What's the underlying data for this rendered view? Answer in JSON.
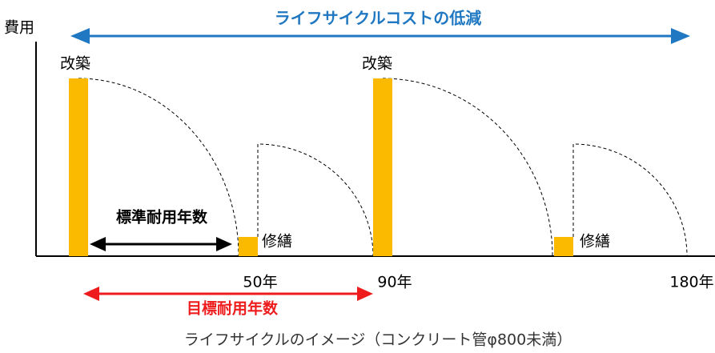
{
  "header": {
    "title": "ライフサイクルコストの低減",
    "y_axis": "費用"
  },
  "events": [
    {
      "label": "改築"
    },
    {
      "label": "修繕"
    },
    {
      "label": "改築"
    },
    {
      "label": "修繕"
    }
  ],
  "axis_labels": [
    "50年",
    "90年",
    "180年"
  ],
  "spans": {
    "standard": "標準耐用年数",
    "target": "目標耐用年数"
  },
  "caption": "ライフサイクルのイメージ（コンクリート管φ800未満）"
}
